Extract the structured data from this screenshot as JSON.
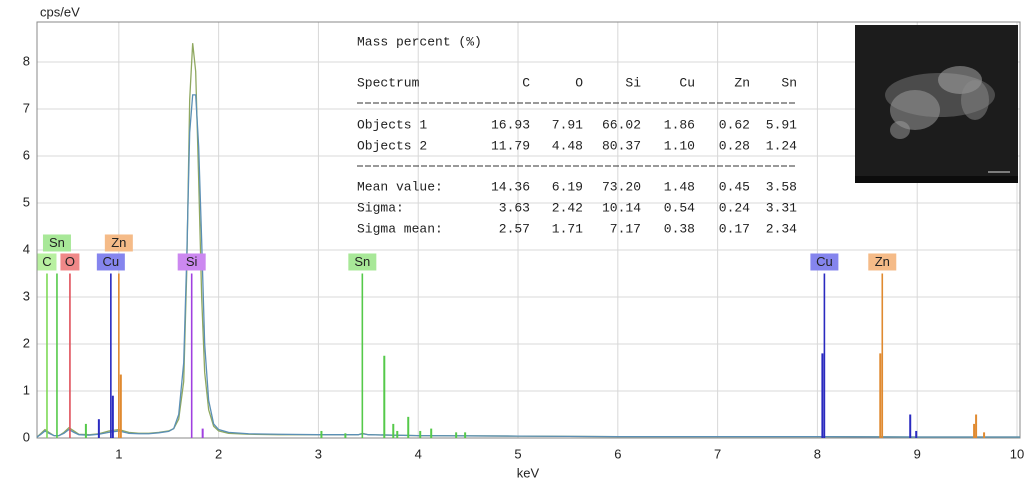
{
  "chart_data": {
    "type": "spectrum",
    "y_label": "cps/eV",
    "x_label": "keV",
    "xlim": [
      0.18,
      10.03
    ],
    "ylim": [
      0,
      8.85
    ],
    "xticks": [
      1,
      2,
      3,
      4,
      5,
      6,
      7,
      8,
      9,
      10
    ],
    "yticks": [
      0,
      1,
      2,
      3,
      4,
      5,
      6,
      7,
      8
    ],
    "grid": true,
    "x": [
      0.18,
      0.22,
      0.26,
      0.3,
      0.35,
      0.4,
      0.45,
      0.5,
      0.55,
      0.6,
      0.7,
      0.8,
      0.9,
      1.0,
      1.1,
      1.2,
      1.3,
      1.4,
      1.5,
      1.55,
      1.6,
      1.65,
      1.68,
      1.71,
      1.74,
      1.77,
      1.8,
      1.83,
      1.86,
      1.9,
      1.95,
      2.0,
      2.1,
      2.3,
      2.6,
      3.0,
      3.4,
      3.44,
      3.5,
      4.0,
      5.0,
      6.0,
      7.0,
      8.0,
      9.0,
      10.03
    ],
    "series": [
      {
        "color": "#8fa860",
        "values": [
          0.02,
          0.1,
          0.18,
          0.12,
          0.05,
          0.05,
          0.12,
          0.22,
          0.15,
          0.08,
          0.07,
          0.09,
          0.15,
          0.18,
          0.12,
          0.1,
          0.1,
          0.12,
          0.15,
          0.2,
          0.4,
          1.2,
          3.5,
          7.2,
          8.4,
          7.8,
          5.5,
          3.0,
          1.4,
          0.6,
          0.25,
          0.15,
          0.1,
          0.08,
          0.07,
          0.07,
          0.07,
          0.1,
          0.07,
          0.05,
          0.04,
          0.03,
          0.03,
          0.03,
          0.02,
          0.02
        ]
      },
      {
        "color": "#5b8fb5",
        "values": [
          0.02,
          0.08,
          0.15,
          0.1,
          0.05,
          0.05,
          0.1,
          0.18,
          0.12,
          0.07,
          0.06,
          0.08,
          0.12,
          0.15,
          0.1,
          0.09,
          0.09,
          0.11,
          0.14,
          0.2,
          0.5,
          1.6,
          3.8,
          6.5,
          7.3,
          7.3,
          6.2,
          4.2,
          2.0,
          0.8,
          0.3,
          0.18,
          0.12,
          0.09,
          0.08,
          0.07,
          0.07,
          0.09,
          0.07,
          0.05,
          0.04,
          0.03,
          0.03,
          0.03,
          0.02,
          0.02
        ]
      }
    ],
    "markers": [
      {
        "element": "C",
        "color": "#7ed957",
        "box_color": "#b8f0a0",
        "x": [
          0.28
        ],
        "heights": [
          3.5
        ]
      },
      {
        "element": "Sn",
        "color": "#55c94a",
        "box_color": "#a8e898",
        "x": [
          0.38,
          0.67
        ],
        "heights": [
          3.5,
          0.3
        ]
      },
      {
        "element": "O",
        "color": "#e0505a",
        "box_color": "#f08888",
        "x": [
          0.51
        ],
        "heights": [
          3.5
        ]
      },
      {
        "element": "Cu",
        "color": "#2a2ac0",
        "box_color": "#8585ee",
        "x": [
          0.92,
          0.8,
          0.94
        ],
        "heights": [
          3.5,
          0.4,
          0.9
        ]
      },
      {
        "element": "Zn",
        "color": "#e08a30",
        "box_color": "#f5bb88",
        "x": [
          1.0,
          1.02
        ],
        "heights": [
          3.5,
          1.35
        ]
      },
      {
        "element": "Si",
        "color": "#a040e0",
        "box_color": "#cc88f0",
        "x": [
          1.73,
          1.84
        ],
        "heights": [
          3.5,
          0.2
        ]
      },
      {
        "element": "Sn",
        "color": "#55c94a",
        "box_color": "#a8e898",
        "x": [
          3.44,
          3.03,
          3.27,
          3.66,
          3.75,
          3.79,
          3.9,
          4.02,
          4.13,
          4.38,
          4.47
        ],
        "heights": [
          3.5,
          0.15,
          0.1,
          1.75,
          0.3,
          0.15,
          0.45,
          0.15,
          0.2,
          0.12,
          0.12
        ]
      },
      {
        "element": "Cu",
        "color": "#2a2ac0",
        "box_color": "#8585ee",
        "x": [
          8.07,
          8.05,
          8.93,
          8.99
        ],
        "heights": [
          3.5,
          1.8,
          0.5,
          0.15
        ]
      },
      {
        "element": "Zn",
        "color": "#e08a30",
        "box_color": "#f5bb88",
        "x": [
          8.65,
          8.63,
          9.59,
          9.57,
          9.67
        ],
        "heights": [
          3.5,
          1.8,
          0.5,
          0.3,
          0.12
        ]
      }
    ]
  },
  "table": {
    "title": "Mass percent (%)",
    "header": [
      "Spectrum",
      "C",
      "O",
      "Si",
      "Cu",
      "Zn",
      "Sn"
    ],
    "rows": [
      [
        "Objects 1",
        "16.93",
        "7.91",
        "66.02",
        "1.86",
        "0.62",
        "5.91"
      ],
      [
        "Objects 2",
        "11.79",
        "4.48",
        "80.37",
        "1.10",
        "0.28",
        "1.24"
      ]
    ],
    "summary": [
      [
        "Mean value:",
        "14.36",
        "6.19",
        "73.20",
        "1.48",
        "0.45",
        "3.58"
      ],
      [
        "Sigma:",
        "3.63",
        "2.42",
        "10.14",
        "0.54",
        "0.24",
        "3.31"
      ],
      [
        "Sigma mean:",
        "2.57",
        "1.71",
        "7.17",
        "0.38",
        "0.17",
        "2.34"
      ]
    ]
  }
}
